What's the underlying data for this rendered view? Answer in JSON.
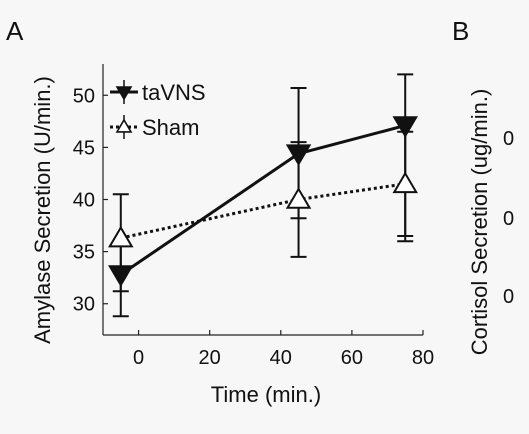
{
  "panels": {
    "a_label": "A",
    "b_label": "B"
  },
  "chart_data": [
    {
      "panel": "A",
      "type": "line",
      "xlabel": "Time (min.)",
      "ylabel": "Amylase Secretion (U/min.)",
      "xlim": [
        -10,
        80
      ],
      "ylim": [
        27,
        53
      ],
      "x_ticks": [
        0,
        20,
        40,
        60,
        80
      ],
      "y_ticks": [
        30,
        35,
        40,
        45,
        50
      ],
      "grid": false,
      "legend_position": "top-left",
      "series": [
        {
          "name": "taVNS",
          "style": "solid",
          "marker": "filled-down-triangle",
          "color": "#111111",
          "x": [
            -5,
            45,
            75
          ],
          "y": [
            32.8,
            44.4,
            47.1
          ],
          "err_upper": [
            35.7,
            50.7,
            52.0
          ],
          "err_lower": [
            28.8,
            34.5,
            36.0
          ]
        },
        {
          "name": "Sham",
          "style": "dotted",
          "marker": "open-up-triangle",
          "color": "#111111",
          "x": [
            -5,
            45,
            75
          ],
          "y": [
            36.3,
            40.0,
            41.5
          ],
          "err_upper": [
            40.5,
            45.5,
            46.5
          ],
          "err_lower": [
            31.2,
            38.2,
            36.5
          ]
        }
      ]
    },
    {
      "panel": "B",
      "type": "line",
      "ylabel": "Cortisol Secretion (ug/min.)",
      "visible_tick_fragments": [
        "0",
        "0",
        "0"
      ]
    }
  ]
}
